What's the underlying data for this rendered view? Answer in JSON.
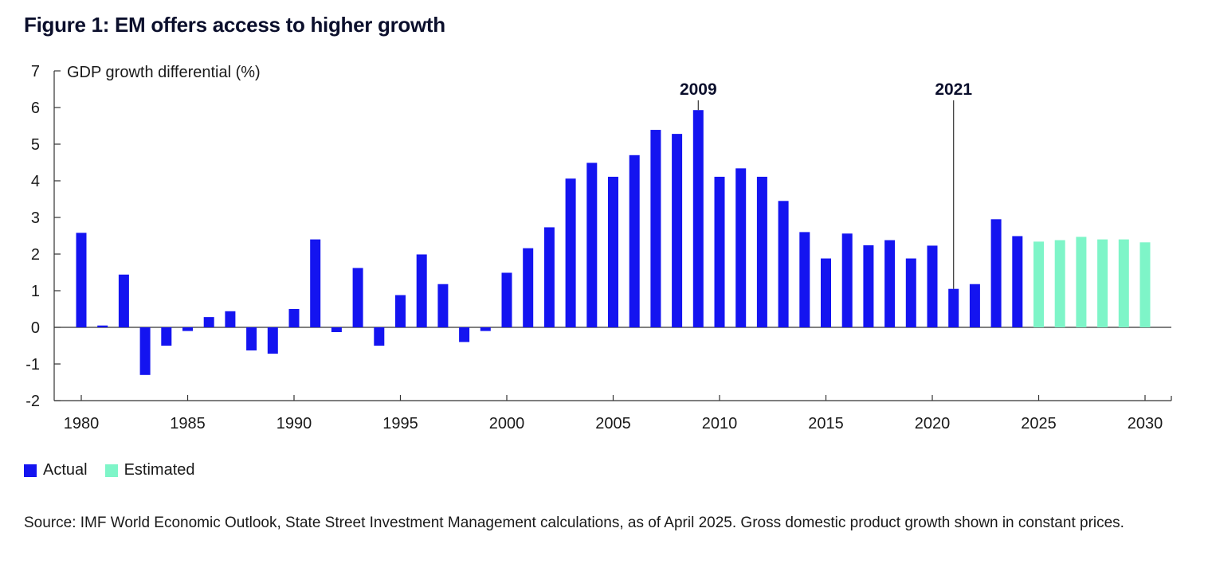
{
  "title": "Figure 1: EM offers access to higher growth",
  "source": "Source: IMF World Economic Outlook, State Street Investment Management calculations, as of April 2025. Gross domestic product growth shown in constant prices.",
  "colors": {
    "actual": "#1414f0",
    "estimated": "#7ef5c8",
    "axis": "#333333"
  },
  "chart_data": {
    "type": "bar",
    "ylabel": "GDP growth differential (%)",
    "ylim": [
      -2,
      7
    ],
    "yticks": [
      -2,
      -1,
      0,
      1,
      2,
      3,
      4,
      5,
      6,
      7
    ],
    "xlim": [
      1980,
      2030
    ],
    "xticks": [
      1980,
      1985,
      1990,
      1995,
      2000,
      2005,
      2010,
      2015,
      2020,
      2025,
      2030
    ],
    "grid": false,
    "legend_position": "bottom-left",
    "series": [
      {
        "name": "Actual",
        "x": [
          1980,
          1981,
          1982,
          1983,
          1984,
          1985,
          1986,
          1987,
          1988,
          1989,
          1990,
          1991,
          1992,
          1993,
          1994,
          1995,
          1996,
          1997,
          1998,
          1999,
          2000,
          2001,
          2002,
          2003,
          2004,
          2005,
          2006,
          2007,
          2008,
          2009,
          2010,
          2011,
          2012,
          2013,
          2014,
          2015,
          2016,
          2017,
          2018,
          2019,
          2020,
          2021,
          2022,
          2023,
          2024
        ],
        "values": [
          2.58,
          0.05,
          1.44,
          -1.3,
          -0.5,
          -0.1,
          0.28,
          0.44,
          -0.63,
          -0.72,
          0.5,
          2.4,
          -0.13,
          1.62,
          -0.5,
          0.88,
          1.99,
          1.18,
          -0.4,
          -0.1,
          1.49,
          2.16,
          2.73,
          4.06,
          4.49,
          4.11,
          4.7,
          5.39,
          5.28,
          5.93,
          4.11,
          4.34,
          4.11,
          3.45,
          2.6,
          1.88,
          2.56,
          2.24,
          2.38,
          1.88,
          2.23,
          1.05,
          1.18,
          2.95,
          2.49
        ]
      },
      {
        "name": "Estimated",
        "x": [
          2025,
          2026,
          2027,
          2028,
          2029,
          2030
        ],
        "values": [
          2.34,
          2.38,
          2.47,
          2.4,
          2.4,
          2.32
        ]
      }
    ],
    "annotations": [
      {
        "label": "2009",
        "year": 2009,
        "value": 5.93
      },
      {
        "label": "2021",
        "year": 2021,
        "value": 1.05
      }
    ]
  }
}
